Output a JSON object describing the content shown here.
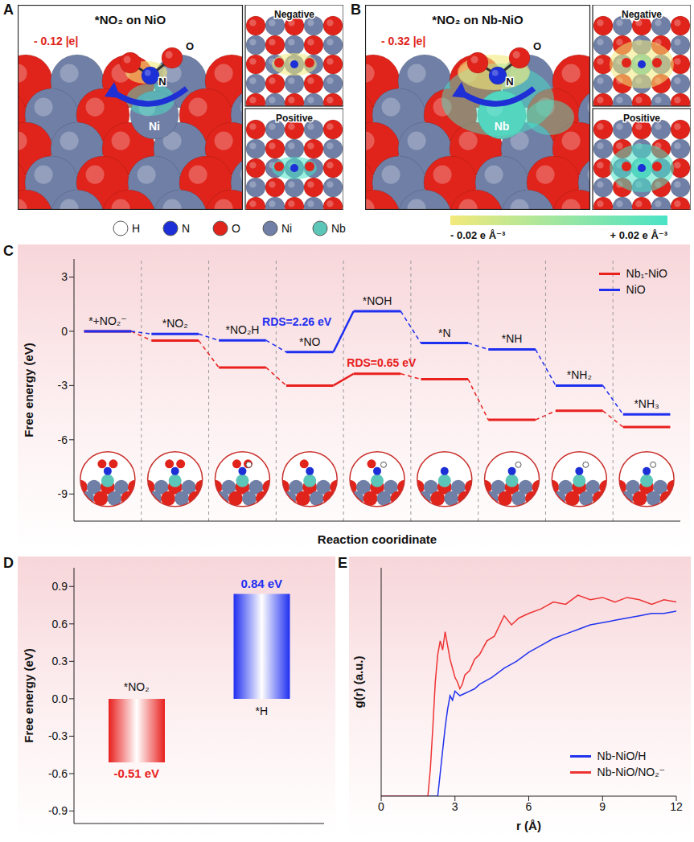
{
  "structures": [
    {
      "panel_label": "A",
      "title": "*NO₂ on NiO",
      "charge": "- 0.12 |e|",
      "atom_labels": [
        "N",
        "O",
        "Ni"
      ],
      "insets": [
        "Negative",
        "Positive"
      ]
    },
    {
      "panel_label": "B",
      "title": "*NO₂ on Nb-NiO",
      "charge": "- 0.32 |e|",
      "atom_labels": [
        "N",
        "O",
        "Nb"
      ],
      "insets": [
        "Negative",
        "Positive"
      ]
    }
  ],
  "atom_legend": [
    {
      "label": "H",
      "color": "#ffffff"
    },
    {
      "label": "N",
      "color": "#1d2fd6"
    },
    {
      "label": "O",
      "color": "#e0241b"
    },
    {
      "label": "Ni",
      "color": "#6f7fa6"
    },
    {
      "label": "Nb",
      "color": "#5cc7b8"
    }
  ],
  "colorbar": {
    "labels": [
      "- 0.02 e Å⁻³",
      "+ 0.02 e Å⁻³"
    ],
    "colors": [
      "#f3e97a",
      "#49e3c6"
    ]
  },
  "chart_data": [
    {
      "panel_label": "C",
      "type": "line",
      "x_label": "Reaction cooridinate",
      "y_label": "Free energy (eV)",
      "categories": [
        "*+NO₂⁻",
        "*NO₂",
        "*NO₂H",
        "*NO",
        "*NOH",
        "*N",
        "*NH",
        "*NH₂",
        "*NH₃"
      ],
      "series": [
        {
          "name": "Nb₁-NiO",
          "color": "#e8201e",
          "values": [
            0,
            -0.51,
            -2.0,
            -3.0,
            -2.35,
            -2.65,
            -4.9,
            -4.4,
            -5.3
          ]
        },
        {
          "name": "NiO",
          "color": "#1f2ff0",
          "values": [
            0,
            -0.15,
            -0.5,
            -1.15,
            1.11,
            -0.65,
            -1.0,
            -3.0,
            -4.6
          ]
        }
      ],
      "ylim": [
        -10.5,
        4
      ],
      "yticks": [
        -9,
        -6,
        -3,
        0,
        3
      ],
      "tick_labels": "y",
      "legend": "top-right",
      "annotations": [
        {
          "text": "RDS=2.26 eV",
          "series": "NiO"
        },
        {
          "text": "RDS=0.65 eV",
          "series": "Nb₁-NiO"
        }
      ]
    },
    {
      "panel_label": "D",
      "type": "bar",
      "y_label": "Free energy (eV)",
      "categories": [
        "*NO₂",
        "*H"
      ],
      "values": [
        -0.51,
        0.84
      ],
      "value_labels": [
        "-0.51 eV",
        "0.84 eV"
      ],
      "colors": [
        "#e8201e",
        "#1f2ff0"
      ],
      "ylim": [
        -1,
        1.05
      ],
      "yticks": [
        -0.9,
        -0.6,
        -0.3,
        {
          "value": 0,
          "label": "0.0"
        },
        0.3,
        0.6,
        0.9
      ],
      "tick_labels": "y",
      "data_labels": true
    },
    {
      "panel_label": "E",
      "type": "line",
      "x_label": "r (Å)",
      "y_label": "g(r) (a.u.)",
      "series": [
        {
          "name": "Nb-NiO/H",
          "color": "#2233ee",
          "x": [
            0,
            2.3,
            2.4,
            2.5,
            2.6,
            2.7,
            2.8,
            2.9,
            3.0,
            3.2,
            3.4,
            3.6,
            3.8,
            4.0,
            4.5,
            5.0,
            5.5,
            6.0,
            6.5,
            7.0,
            7.5,
            8.0,
            8.5,
            9.0,
            9.5,
            10.0,
            10.5,
            11.0,
            11.5,
            12.0
          ],
          "values": [
            0,
            0,
            0.1,
            0.2,
            0.3,
            0.38,
            0.44,
            0.42,
            0.46,
            0.44,
            0.45,
            0.46,
            0.47,
            0.49,
            0.52,
            0.56,
            0.59,
            0.63,
            0.66,
            0.69,
            0.71,
            0.73,
            0.75,
            0.76,
            0.77,
            0.78,
            0.79,
            0.8,
            0.8,
            0.81
          ]
        },
        {
          "name": "Nb-NiO/NO₂⁻",
          "color": "#ee3333",
          "x": [
            0,
            1.9,
            2.0,
            2.1,
            2.2,
            2.3,
            2.4,
            2.5,
            2.6,
            2.7,
            2.8,
            2.9,
            3.0,
            3.1,
            3.2,
            3.3,
            3.4,
            3.6,
            3.8,
            4.0,
            4.3,
            4.6,
            5.0,
            5.3,
            5.6,
            6.0,
            6.5,
            7.0,
            7.5,
            8.0,
            8.5,
            9.0,
            9.5,
            10.0,
            10.5,
            11.0,
            11.5,
            12.0
          ],
          "values": [
            0,
            0,
            0.12,
            0.3,
            0.5,
            0.62,
            0.68,
            0.64,
            0.72,
            0.66,
            0.6,
            0.56,
            0.52,
            0.5,
            0.47,
            0.49,
            0.53,
            0.55,
            0.6,
            0.62,
            0.68,
            0.7,
            0.79,
            0.75,
            0.78,
            0.8,
            0.82,
            0.85,
            0.84,
            0.88,
            0.86,
            0.87,
            0.85,
            0.87,
            0.86,
            0.84,
            0.86,
            0.85
          ]
        }
      ],
      "xlim": [
        0,
        12
      ],
      "xticks": [
        0,
        3,
        6,
        9,
        12
      ],
      "ylim": [
        0,
        1
      ],
      "tick_labels": "x",
      "legend": "bottom-right"
    }
  ]
}
